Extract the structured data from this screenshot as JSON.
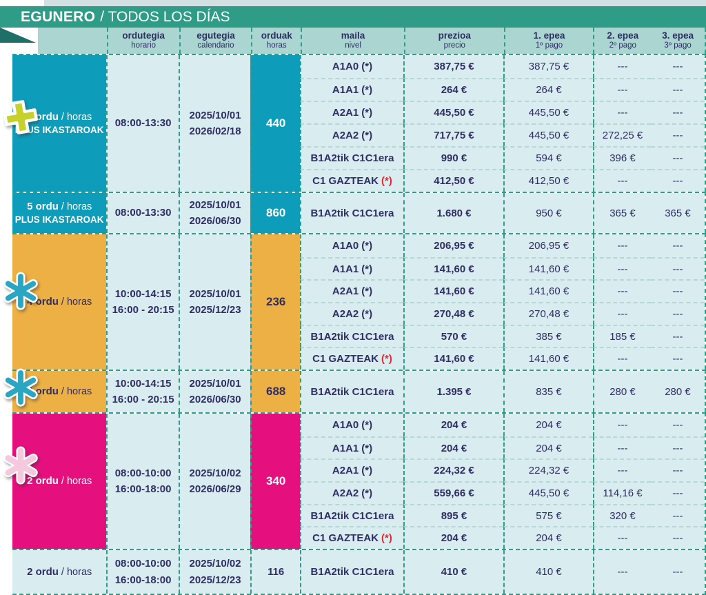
{
  "title": {
    "eu": "EGUNERO",
    "es": "/ TODOS LOS DÍAS"
  },
  "columns": [
    {
      "eu": "ordutegia",
      "es": "horario"
    },
    {
      "eu": "egutegia",
      "es": "calendario"
    },
    {
      "eu": "orduak",
      "es": "horas"
    },
    {
      "eu": "maila",
      "es": "nivel"
    },
    {
      "eu": "prezioa",
      "es": "precio"
    },
    {
      "eu": "1. epea",
      "es": "1º pago"
    },
    {
      "eu": "2. epea",
      "es": "2º pago"
    },
    {
      "eu": "3. epea",
      "es": "3º pago"
    }
  ],
  "blocks": [
    {
      "id": "plus-440",
      "theme": "teal",
      "icon": "plus-icon",
      "label_bold": "5 ordu",
      "label_rest": "/ horas",
      "label_line2": "PLUS IKASTAROAK",
      "schedule": [
        "08:00-13:30"
      ],
      "dates": [
        "2025/10/01",
        "2026/02/18"
      ],
      "hours": "440",
      "rows": [
        {
          "level": "A1A0",
          "star": "(*)",
          "star_red": false,
          "price": "387,75 €",
          "pay1": "387,75 €",
          "pay2": "---",
          "pay3": "---"
        },
        {
          "level": "A1A1",
          "star": "(*)",
          "star_red": false,
          "price": "264 €",
          "pay1": "264 €",
          "pay2": "---",
          "pay3": "---"
        },
        {
          "level": "A2A1",
          "star": "(*)",
          "star_red": false,
          "price": "445,50 €",
          "pay1": "445,50 €",
          "pay2": "---",
          "pay3": "---"
        },
        {
          "level": "A2A2",
          "star": "(*)",
          "star_red": false,
          "price": "717,75 €",
          "pay1": "445,50 €",
          "pay2": "272,25 €",
          "pay3": "---"
        },
        {
          "level": "B1A2tik C1C1era",
          "star": "",
          "star_red": false,
          "price": "990 €",
          "pay1": "594 €",
          "pay2": "396 €",
          "pay3": "---"
        },
        {
          "level": "C1 GAZTEAK",
          "star": "(*)",
          "star_red": true,
          "price": "412,50 €",
          "pay1": "412,50 €",
          "pay2": "---",
          "pay3": "---"
        }
      ]
    },
    {
      "id": "plus-860",
      "theme": "teal",
      "icon": null,
      "label_bold": "5 ordu",
      "label_rest": "/ horas",
      "label_line2": "PLUS IKASTAROAK",
      "schedule": [
        "08:00-13:30"
      ],
      "dates": [
        "2025/10/01",
        "2026/06/30"
      ],
      "hours": "860",
      "rows": [
        {
          "level": "B1A2tik C1C1era",
          "star": "",
          "star_red": false,
          "price": "1.680 €",
          "pay1": "950 €",
          "pay2": "365 €",
          "pay3": "365 €"
        }
      ]
    },
    {
      "id": "four-236",
      "theme": "orange",
      "icon": "asterisk-teal-icon",
      "label_bold": "4 ordu",
      "label_rest": "/ horas",
      "label_line2": "",
      "schedule": [
        "10:00-14:15",
        "16:00 - 20:15"
      ],
      "dates": [
        "2025/10/01",
        "2025/12/23"
      ],
      "hours": "236",
      "rows": [
        {
          "level": "A1A0",
          "star": "(*)",
          "star_red": false,
          "price": "206,95 €",
          "pay1": "206,95 €",
          "pay2": "---",
          "pay3": "---"
        },
        {
          "level": "A1A1",
          "star": "(*)",
          "star_red": false,
          "price": "141,60 €",
          "pay1": "141,60 €",
          "pay2": "---",
          "pay3": "---"
        },
        {
          "level": "A2A1",
          "star": "(*)",
          "star_red": false,
          "price": "141,60 €",
          "pay1": "141,60 €",
          "pay2": "---",
          "pay3": "---"
        },
        {
          "level": "A2A2",
          "star": "(*)",
          "star_red": false,
          "price": "270,48 €",
          "pay1": "270,48 €",
          "pay2": "---",
          "pay3": "---"
        },
        {
          "level": "B1A2tik C1C1era",
          "star": "",
          "star_red": false,
          "price": "570 €",
          "pay1": "385 €",
          "pay2": "185 €",
          "pay3": "---"
        },
        {
          "level": "C1 GAZTEAK",
          "star": "(*)",
          "star_red": true,
          "price": "141,60 €",
          "pay1": "141,60 €",
          "pay2": "---",
          "pay3": "---"
        }
      ]
    },
    {
      "id": "four-688",
      "theme": "orange",
      "icon": "asterisk-teal-icon",
      "label_bold": "4 ordu",
      "label_rest": "/ horas",
      "label_line2": "",
      "schedule": [
        "10:00-14:15",
        "16:00 - 20:15"
      ],
      "dates": [
        "2025/10/01",
        "2026/06/30"
      ],
      "hours": "688",
      "rows": [
        {
          "level": "B1A2tik C1C1era",
          "star": "",
          "star_red": false,
          "price": "1.395 €",
          "pay1": "835 €",
          "pay2": "280 €",
          "pay3": "280 €"
        }
      ]
    },
    {
      "id": "two-340",
      "theme": "pink",
      "icon": "asterisk-pink-icon",
      "label_bold": "2 ordu",
      "label_rest": "/ horas",
      "label_line2": "",
      "schedule": [
        "08:00-10:00",
        "16:00-18:00"
      ],
      "dates": [
        "2025/10/02",
        "2026/06/29"
      ],
      "hours": "340",
      "rows": [
        {
          "level": "A1A0",
          "star": "(*)",
          "star_red": false,
          "price": "204 €",
          "pay1": "204 €",
          "pay2": "---",
          "pay3": "---"
        },
        {
          "level": "A1A1",
          "star": "(*)",
          "star_red": false,
          "price": "204 €",
          "pay1": "204 €",
          "pay2": "---",
          "pay3": "---"
        },
        {
          "level": "A2A1",
          "star": "(*)",
          "star_red": false,
          "price": "224,32 €",
          "pay1": "224,32 €",
          "pay2": "---",
          "pay3": "---"
        },
        {
          "level": "A2A2",
          "star": "(*)",
          "star_red": false,
          "price": "559,66 €",
          "pay1": "445,50 €",
          "pay2": "114,16 €",
          "pay3": "---"
        },
        {
          "level": "B1A2tik C1C1era",
          "star": "",
          "star_red": false,
          "price": "895 €",
          "pay1": "575 €",
          "pay2": "320 €",
          "pay3": "---"
        },
        {
          "level": "C1 GAZTEAK",
          "star": "(*)",
          "star_red": true,
          "price": "204 €",
          "pay1": "204 €",
          "pay2": "---",
          "pay3": "---"
        }
      ]
    },
    {
      "id": "two-116",
      "theme": "plain",
      "icon": null,
      "label_bold": "2 ordu",
      "label_rest": "/ horas",
      "label_line2": "",
      "schedule": [
        "08:00-10:00",
        "16:00-18:00"
      ],
      "dates": [
        "2025/10/02",
        "2025/12/23"
      ],
      "hours": "116",
      "rows": [
        {
          "level": "B1A2tik C1C1era",
          "star": "",
          "star_red": false,
          "price": "410 €",
          "pay1": "410 €",
          "pay2": "---",
          "pay3": "---"
        }
      ]
    }
  ],
  "colors": {
    "band_green": "#2E9C86",
    "fold_dark": "#1D6F68",
    "header_bg": "#ABD5D1",
    "cell_bg": "#D9ECEF",
    "teal_block": "#0D9CBA",
    "orange_block": "#EDB045",
    "pink_block": "#E50F7E",
    "navy_text": "#2E2D64",
    "red_star": "#E6232E",
    "plus_icon": "#C5D22B",
    "asterisk_teal": "#2AA5C2",
    "asterisk_pink": "#F4C9DE",
    "dash_strong": "#2E9C86",
    "dash_light": "#B4D8D4"
  }
}
